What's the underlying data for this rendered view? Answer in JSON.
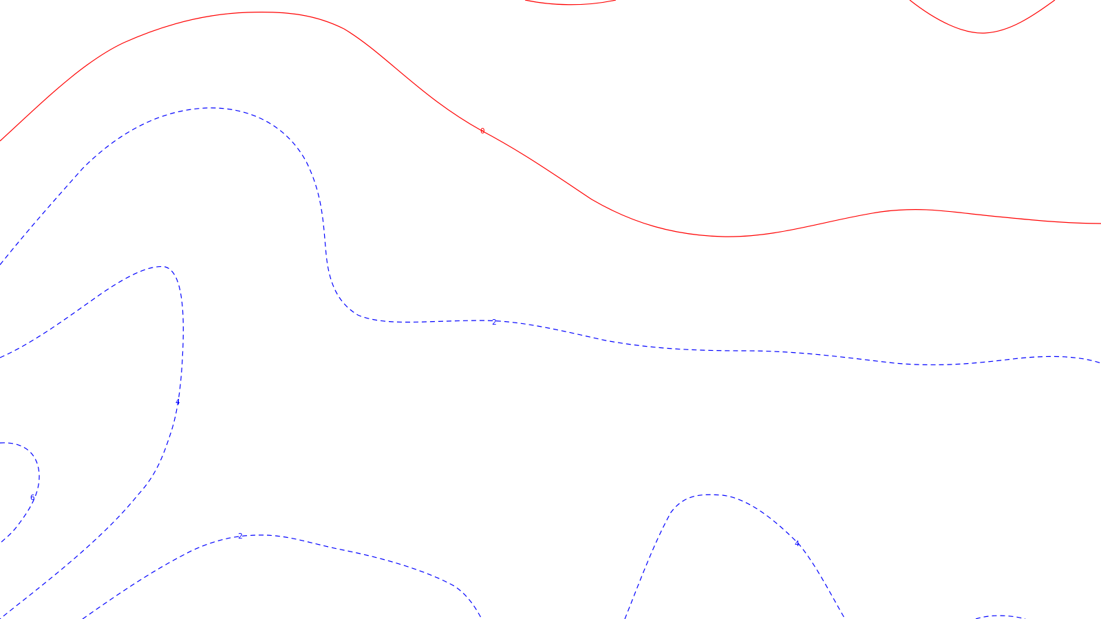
{
  "map": {
    "colors": {
      "zero_contour": "#ff0000",
      "positive_contour": "#0000ff",
      "background": "#ffffff"
    },
    "contour_levels": [
      0,
      2,
      4,
      6
    ],
    "labels": {
      "zero_main": "0",
      "two_middle": "2",
      "four_left": "4",
      "six_left": "6",
      "two_lower": "2",
      "four_lower_right": "4"
    }
  }
}
